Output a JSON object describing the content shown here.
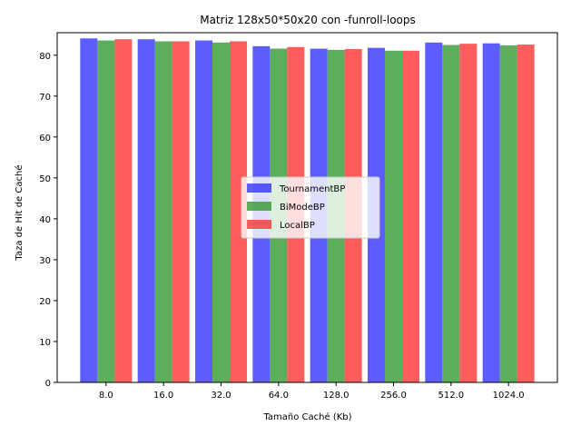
{
  "chart_data": {
    "type": "bar",
    "title": "Matriz 128x50*50x20 con -funroll-loops",
    "xlabel": "Tamaño Caché (Kb)",
    "ylabel": "Taza de Hit de Caché",
    "categories": [
      "8.0",
      "16.0",
      "32.0",
      "64.0",
      "128.0",
      "256.0",
      "512.0",
      "1024.0"
    ],
    "ylim": [
      0,
      85.5
    ],
    "yticks": [
      0,
      10,
      20,
      30,
      40,
      50,
      60,
      70,
      80
    ],
    "grid": false,
    "legend_position": "center",
    "series": [
      {
        "name": "TournamentBP",
        "color": "#3333ff",
        "values": [
          84.1,
          83.9,
          83.6,
          82.2,
          81.6,
          81.8,
          83.1,
          82.9
        ]
      },
      {
        "name": "BiModeBP",
        "color": "#339933",
        "values": [
          83.6,
          83.4,
          83.1,
          81.6,
          81.3,
          81.1,
          82.5,
          82.4
        ]
      },
      {
        "name": "LocalBP",
        "color": "#ff3333",
        "values": [
          83.9,
          83.4,
          83.4,
          82.0,
          81.5,
          81.1,
          82.8,
          82.6
        ]
      }
    ]
  }
}
